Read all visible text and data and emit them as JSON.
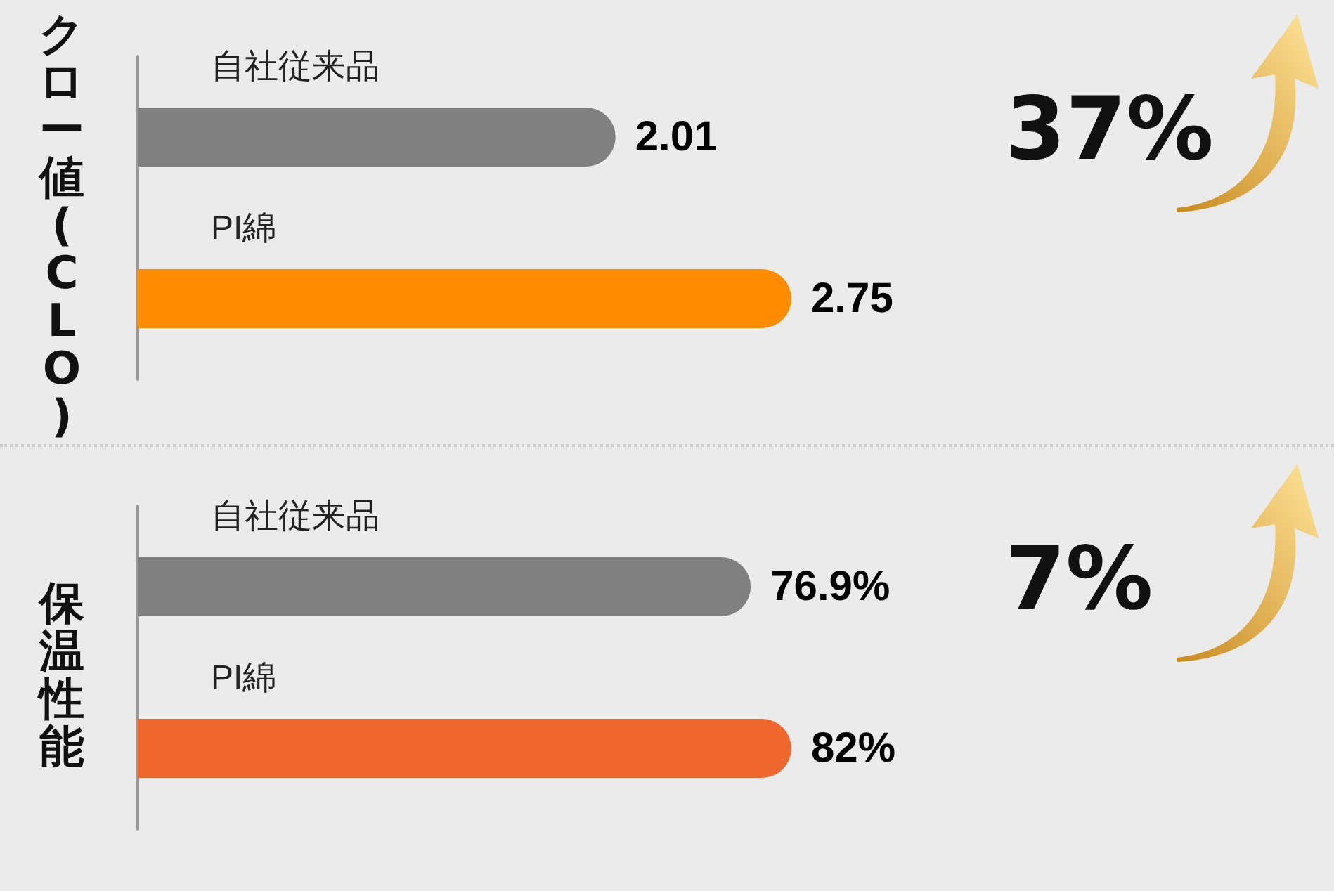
{
  "chart_data": [
    {
      "type": "bar",
      "orientation": "horizontal",
      "ylabel": "クロー値(CLO)",
      "categories": [
        "自社従来品",
        "PI綿"
      ],
      "values": [
        2.01,
        2.75
      ],
      "colors": [
        "#808080",
        "#ff8c00"
      ],
      "data_labels": true,
      "tick_labels": "y",
      "annotations": [
        "37%"
      ]
    },
    {
      "type": "bar",
      "orientation": "horizontal",
      "ylabel": "保温性能",
      "categories": [
        "自社従来品",
        "PI綿"
      ],
      "values": [
        76.9,
        82
      ],
      "value_labels": [
        "76.9%",
        "82%"
      ],
      "colors": [
        "#808080",
        "#ef672d"
      ],
      "tick_labels": "y",
      "annotations": [
        "7%"
      ]
    }
  ]
}
